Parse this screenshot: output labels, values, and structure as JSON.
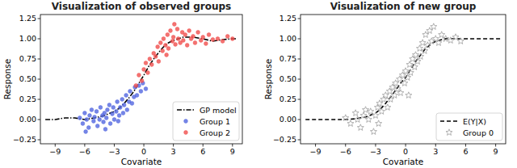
{
  "chart_data": [
    {
      "type": "scatter",
      "title": "Visualization of observed groups",
      "x_label": "Covariate",
      "y_label": "Response",
      "xlim": [
        -10.5,
        10
      ],
      "ylim": [
        -0.3,
        1.3
      ],
      "xticks": [
        {
          "value": -9,
          "label": "−9"
        },
        {
          "value": -6,
          "label": "−6"
        },
        {
          "value": -3,
          "label": "−3"
        },
        0,
        3,
        6,
        9
      ],
      "yticks": [
        {
          "value": -0.25,
          "label": "−0.25"
        },
        {
          "value": 0,
          "label": "0.00"
        },
        {
          "value": 0.25,
          "label": "0.25"
        },
        {
          "value": 0.5,
          "label": "0.50"
        },
        {
          "value": 0.75,
          "label": "0.75"
        },
        {
          "value": 1,
          "label": "1.00"
        },
        {
          "value": 1.25,
          "label": "1.25"
        }
      ],
      "grid": false,
      "legend": "lower right",
      "series": [
        {
          "name": "GP model",
          "type": "line",
          "color": "#000000",
          "line_style": "dashdot",
          "x": [
            -10,
            -9,
            -8,
            -7,
            -6,
            -5,
            -4,
            -3,
            -2.5,
            -2,
            -1.5,
            -1,
            -0.5,
            0,
            0.5,
            1,
            1.5,
            2,
            2.5,
            3,
            4,
            5,
            6,
            7,
            8,
            9,
            9.5
          ],
          "values": [
            0.0,
            0.0,
            0.02,
            0.02,
            0.0,
            0.02,
            0.05,
            0.1,
            0.14,
            0.2,
            0.27,
            0.35,
            0.45,
            0.55,
            0.66,
            0.75,
            0.83,
            0.9,
            0.95,
            0.98,
            1.02,
            1.02,
            1.0,
            0.97,
            0.99,
            1.0,
            1.0
          ]
        },
        {
          "name": "Group 1",
          "type": "scatter",
          "color": "#5468e0",
          "marker": "circle",
          "x": [
            -6.5,
            -6.2,
            -6.0,
            -5.8,
            -5.6,
            -5.5,
            -5.3,
            -5.1,
            -5.0,
            -4.8,
            -4.7,
            -4.5,
            -4.4,
            -4.2,
            -4.1,
            -4.0,
            -3.8,
            -3.7,
            -3.5,
            -3.4,
            -3.2,
            -3.1,
            -3.0,
            -2.8,
            -2.7,
            -2.5,
            -2.4,
            -2.2,
            -2.1,
            -2.0,
            -1.8,
            -1.7,
            -1.5,
            -1.4,
            -1.2,
            -1.0,
            -0.9,
            -0.7,
            -0.5,
            -0.3,
            -0.1,
            0.2,
            -5.9,
            -3.9,
            -2.6
          ],
          "values": [
            0.02,
            -0.05,
            0.08,
            0.0,
            -0.1,
            0.05,
            0.12,
            -0.02,
            0.03,
            0.1,
            -0.08,
            0.0,
            0.15,
            0.05,
            -0.03,
            0.08,
            0.02,
            0.12,
            0.18,
            -0.05,
            0.07,
            0.15,
            0.0,
            0.1,
            0.22,
            0.05,
            0.15,
            0.25,
            0.08,
            0.18,
            0.3,
            0.12,
            0.22,
            0.35,
            0.2,
            0.28,
            0.4,
            0.3,
            0.42,
            0.35,
            0.45,
            0.38,
            -0.15,
            -0.12,
            -0.02
          ]
        },
        {
          "name": "Group 2",
          "type": "scatter",
          "color": "#f0504f",
          "marker": "circle",
          "x": [
            -0.8,
            -0.5,
            -0.2,
            0.0,
            0.2,
            0.4,
            0.6,
            0.8,
            1.0,
            1.2,
            1.4,
            1.5,
            1.7,
            1.9,
            2.0,
            2.2,
            2.4,
            2.5,
            2.7,
            2.9,
            3.0,
            3.2,
            3.4,
            3.5,
            3.7,
            3.9,
            4.0,
            4.2,
            4.4,
            4.6,
            4.8,
            5.0,
            5.2,
            5.5,
            5.8,
            6.0,
            6.3,
            6.6,
            7.0,
            7.5,
            8.0,
            8.5,
            9.0,
            3.1,
            2.3
          ],
          "values": [
            0.42,
            0.55,
            0.48,
            0.62,
            0.7,
            0.58,
            0.75,
            0.68,
            0.82,
            0.78,
            0.9,
            0.72,
            0.95,
            0.85,
            1.0,
            0.92,
            1.05,
            0.88,
            1.1,
            0.97,
            1.02,
            0.93,
            1.12,
            1.0,
            0.95,
            1.08,
            0.98,
            1.05,
            0.92,
            1.1,
            1.0,
            1.03,
            0.95,
            1.08,
            0.98,
            1.02,
            0.94,
            1.05,
            0.99,
            1.0,
            0.97,
            1.03,
            1.0,
            1.18,
            0.8
          ]
        }
      ]
    },
    {
      "type": "scatter",
      "title": "Visualization of new group",
      "x_label": "Covariate",
      "y_label": "Response",
      "xlim": [
        -10.5,
        10
      ],
      "ylim": [
        -0.3,
        1.3
      ],
      "xticks": [
        {
          "value": -9,
          "label": "−9"
        },
        {
          "value": -6,
          "label": "−6"
        },
        {
          "value": -3,
          "label": "−3"
        },
        0,
        3,
        6,
        9
      ],
      "yticks": [
        {
          "value": -0.25,
          "label": "−0.25"
        },
        {
          "value": 0,
          "label": "0.00"
        },
        {
          "value": 0.25,
          "label": "0.25"
        },
        {
          "value": 0.5,
          "label": "0.50"
        },
        {
          "value": 0.75,
          "label": "0.75"
        },
        {
          "value": 1,
          "label": "1.00"
        },
        {
          "value": 1.25,
          "label": "1.25"
        }
      ],
      "grid": false,
      "legend": "lower right",
      "series": [
        {
          "name": "E(Y|X)",
          "type": "line",
          "color": "#000000",
          "line_style": "dashed",
          "x": [
            -10,
            -9,
            -8,
            -7,
            -6,
            -5,
            -4,
            -3,
            -2.5,
            -2,
            -1.5,
            -1,
            -0.5,
            0,
            0.5,
            1,
            1.5,
            2,
            2.5,
            3,
            4,
            5,
            6,
            7,
            8,
            9,
            9.5
          ],
          "values": [
            0.0,
            0.0,
            0.0,
            0.0,
            0.0,
            0.01,
            0.03,
            0.08,
            0.13,
            0.2,
            0.28,
            0.36,
            0.45,
            0.52,
            0.62,
            0.72,
            0.8,
            0.88,
            0.93,
            0.97,
            1.0,
            1.0,
            1.0,
            1.0,
            1.0,
            1.0,
            1.0
          ]
        },
        {
          "name": "Group 0",
          "type": "scatter",
          "color": "#a8a8a8",
          "marker": "star",
          "x": [
            -6.0,
            -5.5,
            -5.0,
            -4.8,
            -4.5,
            -4.2,
            -4.0,
            -3.7,
            -3.5,
            -3.2,
            -3.0,
            -2.8,
            -2.6,
            -2.4,
            -2.2,
            -2.0,
            -1.8,
            -1.6,
            -1.5,
            -1.3,
            -1.1,
            -1.0,
            -0.8,
            -0.6,
            -0.5,
            -0.3,
            -0.1,
            0.0,
            0.2,
            0.4,
            0.5,
            0.7,
            0.9,
            1.0,
            1.2,
            1.4,
            1.5,
            1.7,
            1.9,
            2.0,
            2.2,
            2.4,
            2.6,
            2.8,
            3.0,
            3.3,
            3.6,
            4.0,
            4.5,
            5.0,
            5.5,
            -2.7,
            0.3
          ],
          "values": [
            0.02,
            -0.05,
            0.08,
            0.0,
            -0.1,
            0.05,
            0.12,
            0.0,
            0.1,
            -0.15,
            0.05,
            0.15,
            0.2,
            0.1,
            0.25,
            0.3,
            0.15,
            0.35,
            0.25,
            0.4,
            0.3,
            0.45,
            0.38,
            0.5,
            0.33,
            0.55,
            0.45,
            0.6,
            0.52,
            0.68,
            0.58,
            0.75,
            0.65,
            0.8,
            0.72,
            0.88,
            0.78,
            0.95,
            0.85,
            1.05,
            0.92,
            1.1,
            0.97,
            1.15,
            1.0,
            0.95,
            1.05,
            1.0,
            0.98,
            1.02,
            0.97,
            -0.05,
            0.3
          ]
        }
      ]
    }
  ]
}
